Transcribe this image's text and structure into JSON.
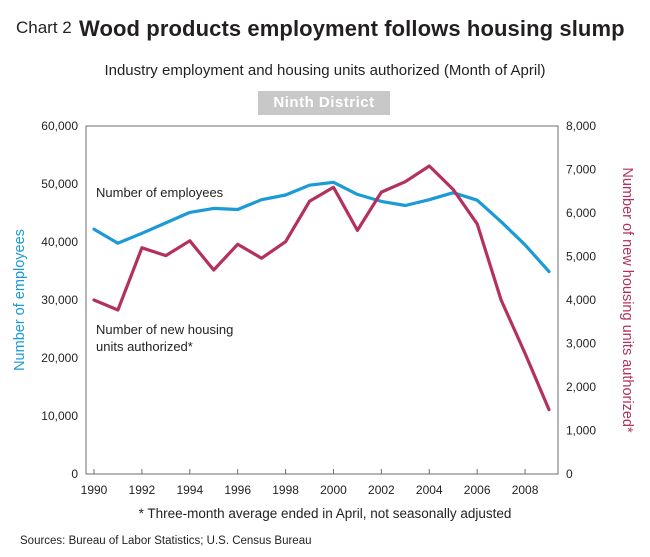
{
  "header": {
    "chart_label": "Chart 2",
    "title": "Wood products employment follows housing slump",
    "subtitle": "Industry employment and housing units authorized (Month of April)",
    "badge": "Ninth District"
  },
  "footer": {
    "footnote": "* Three-month average ended in April, not seasonally adjusted",
    "sources": "Sources: Bureau of Labor Statistics; U.S. Census Bureau"
  },
  "chart_data": {
    "type": "line",
    "x": [
      1990,
      1991,
      1992,
      1993,
      1994,
      1995,
      1996,
      1997,
      1998,
      1999,
      2000,
      2001,
      2002,
      2003,
      2004,
      2005,
      2006,
      2007,
      2008,
      2009
    ],
    "x_tick_labels": [
      "1990",
      "1992",
      "1994",
      "1996",
      "1998",
      "2000",
      "2002",
      "2004",
      "2006",
      "2008"
    ],
    "xlim": [
      1990,
      2009
    ],
    "series": [
      {
        "name": "Number of employees",
        "axis": "left",
        "color": "#1a9ad6",
        "values": [
          42200,
          39800,
          41500,
          43300,
          45100,
          45800,
          45600,
          47300,
          48100,
          49800,
          50300,
          48200,
          47000,
          46300,
          47300,
          48500,
          47200,
          43500,
          39500,
          34900
        ]
      },
      {
        "name": "Number of new housing units authorized*",
        "axis": "right",
        "color": "#b3305f",
        "values": [
          4000,
          3770,
          5200,
          5020,
          5360,
          4690,
          5280,
          4960,
          5340,
          6270,
          6590,
          5600,
          6480,
          6720,
          7080,
          6540,
          5750,
          4000,
          2770,
          1480
        ]
      }
    ],
    "y_left": {
      "label": "Number of employees",
      "ylim": [
        0,
        60000
      ],
      "ticks": [
        "0",
        "10,000",
        "20,000",
        "30,000",
        "40,000",
        "50,000",
        "60,000"
      ],
      "color": "#1a9ad6"
    },
    "y_right": {
      "label": "Number of new housing units authorized*",
      "ylim": [
        0,
        8000
      ],
      "ticks": [
        "0",
        "1,000",
        "2,000",
        "3,000",
        "4,000",
        "5,000",
        "6,000",
        "7,000",
        "8,000"
      ],
      "color": "#b3305f"
    },
    "annotations": [
      {
        "text": "Number of employees"
      },
      {
        "text": "Number of new housing"
      },
      {
        "text": "units authorized*"
      }
    ],
    "grid": false,
    "legend": "none"
  }
}
